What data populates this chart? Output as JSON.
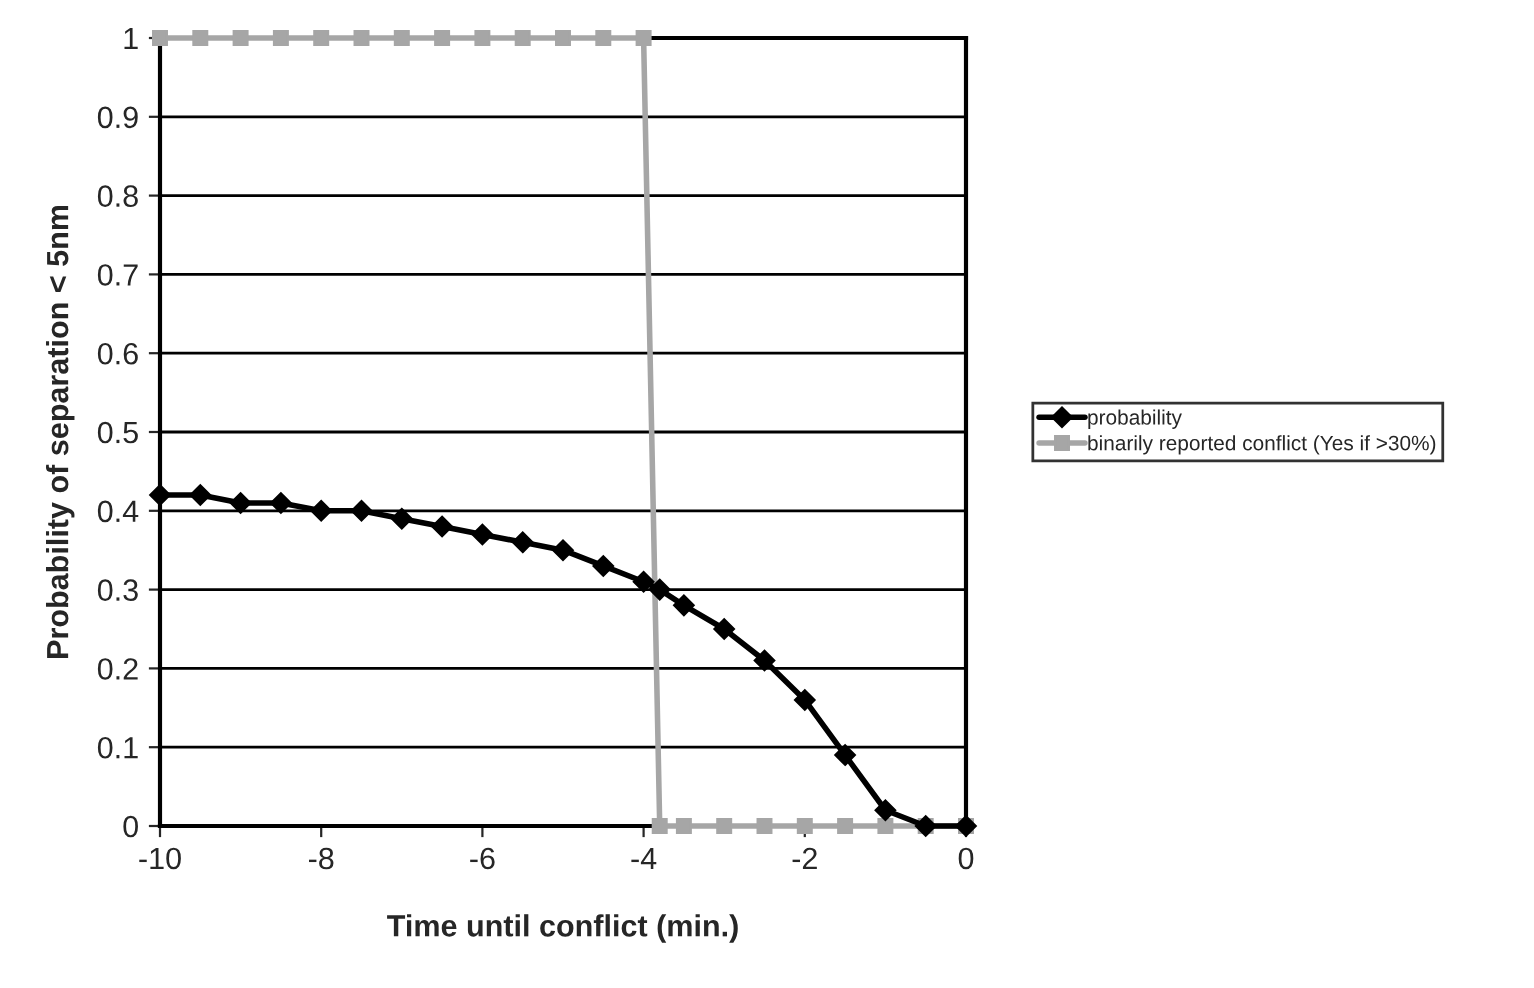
{
  "chart_data": {
    "type": "line",
    "xlabel": "Time until conflict (min.)",
    "ylabel": "Probability of separation < 5nm",
    "xlim": [
      -10,
      0
    ],
    "xticks": [
      -10,
      -8,
      -6,
      -4,
      -2,
      0
    ],
    "ylim": [
      0,
      1
    ],
    "yticks": [
      0,
      0.1,
      0.2,
      0.3,
      0.4,
      0.5,
      0.6,
      0.7,
      0.8,
      0.9,
      1
    ],
    "grid": "y",
    "legend": "right",
    "series": [
      {
        "name": "probability",
        "color": "#000000",
        "marker": "diamond",
        "x": [
          -10,
          -9.5,
          -9,
          -8.5,
          -8,
          -7.5,
          -7,
          -6.5,
          -6,
          -5.5,
          -5,
          -4.5,
          -4,
          -3.8,
          -3.5,
          -3,
          -2.5,
          -2,
          -1.5,
          -1,
          -0.5,
          0
        ],
        "values": [
          0.42,
          0.42,
          0.41,
          0.41,
          0.4,
          0.4,
          0.39,
          0.38,
          0.37,
          0.36,
          0.35,
          0.33,
          0.31,
          0.3,
          0.28,
          0.25,
          0.21,
          0.16,
          0.09,
          0.02,
          0,
          0
        ]
      },
      {
        "name": "binarily reported conflict (Yes if >30%)",
        "color": "#a6a6a6",
        "marker": "square",
        "x": [
          -10,
          -9.5,
          -9,
          -8.5,
          -8,
          -7.5,
          -7,
          -6.5,
          -6,
          -5.5,
          -5,
          -4.5,
          -4,
          -3.8,
          -3.5,
          -3,
          -2.5,
          -2,
          -1.5,
          -1,
          -0.5,
          0
        ],
        "values": [
          1,
          1,
          1,
          1,
          1,
          1,
          1,
          1,
          1,
          1,
          1,
          1,
          1,
          0,
          0,
          0,
          0,
          0,
          0,
          0,
          0,
          0
        ]
      }
    ]
  }
}
